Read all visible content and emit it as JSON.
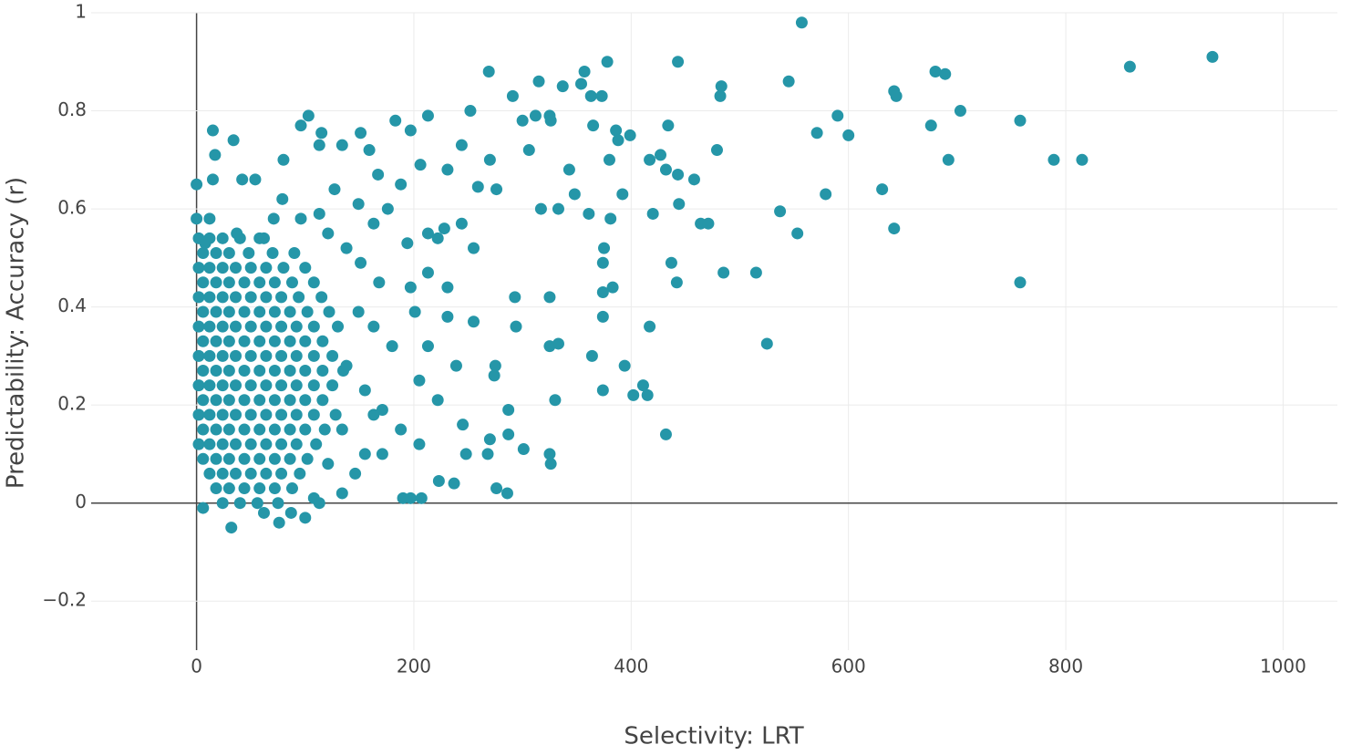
{
  "chart_data": {
    "type": "scatter",
    "x_label": "Selectivity: LRT",
    "y_label": "Predictability: Accuracy (r)",
    "color": "#2596a8",
    "grid": true,
    "zeroline": true,
    "xlim": [
      -97,
      1050
    ],
    "ylim": [
      -0.3,
      1
    ],
    "xticks": [
      0,
      200,
      400,
      600,
      800,
      1000
    ],
    "yticks": [
      {
        "value": -0.2,
        "label": "−0.2"
      },
      0,
      0.2,
      0.4,
      0.6,
      0.8,
      1
    ],
    "x": [
      2,
      12,
      24,
      40,
      58,
      6,
      18,
      30,
      48,
      70,
      90,
      2,
      12,
      24,
      36,
      50,
      64,
      80,
      100,
      6,
      18,
      30,
      44,
      58,
      72,
      88,
      108,
      2,
      12,
      24,
      36,
      50,
      64,
      78,
      94,
      115,
      6,
      18,
      30,
      44,
      58,
      72,
      86,
      102,
      122,
      2,
      12,
      24,
      36,
      50,
      64,
      78,
      92,
      108,
      130,
      6,
      18,
      30,
      44,
      58,
      72,
      86,
      100,
      116,
      2,
      12,
      24,
      36,
      50,
      64,
      78,
      92,
      108,
      125,
      6,
      18,
      30,
      44,
      58,
      72,
      86,
      100,
      116,
      135,
      2,
      12,
      24,
      36,
      50,
      64,
      78,
      92,
      108,
      125,
      6,
      18,
      30,
      44,
      58,
      72,
      86,
      100,
      116,
      2,
      12,
      24,
      36,
      50,
      64,
      78,
      92,
      108,
      128,
      6,
      18,
      30,
      44,
      58,
      72,
      86,
      100,
      118,
      2,
      12,
      24,
      36,
      50,
      64,
      78,
      92,
      110,
      6,
      18,
      30,
      44,
      58,
      72,
      86,
      102,
      12,
      24,
      36,
      50,
      64,
      78,
      95,
      18,
      30,
      44,
      58,
      72,
      88,
      24,
      40,
      56,
      75,
      557,
      935,
      859,
      443,
      378,
      269,
      680,
      689,
      357,
      545,
      483,
      315,
      337,
      354,
      642,
      644,
      482,
      363,
      373,
      291,
      590,
      703,
      758,
      103,
      312,
      325,
      326,
      300,
      183,
      213,
      252,
      434,
      365,
      386,
      676,
      571,
      600,
      15,
      115,
      151,
      197,
      399,
      388,
      34,
      96,
      113,
      134,
      159,
      244,
      306,
      427,
      479,
      17,
      692,
      789,
      815,
      417,
      380,
      270,
      206,
      231,
      80,
      167,
      432,
      443,
      458,
      343,
      15,
      0,
      42,
      54,
      188,
      259,
      276,
      579,
      631,
      392,
      348,
      127,
      79,
      444,
      317,
      333,
      537,
      420,
      361,
      381,
      464,
      471,
      553,
      642,
      375,
      374,
      437,
      485,
      515,
      442,
      758,
      383,
      374,
      325,
      293,
      374,
      417,
      294,
      525,
      333,
      325,
      364,
      394,
      275,
      274,
      411,
      402,
      415,
      374,
      330,
      287,
      432,
      287,
      270,
      245,
      301,
      248,
      325,
      326,
      268,
      237,
      276,
      286,
      190,
      207,
      197,
      223,
      213,
      228,
      222,
      244,
      255,
      213,
      197,
      231,
      201,
      231,
      255,
      213,
      180,
      239,
      205,
      222,
      171,
      188,
      205,
      155,
      171,
      146,
      163,
      176,
      194,
      151,
      168,
      149,
      163,
      138,
      155,
      134,
      121,
      134,
      108,
      100,
      76,
      32,
      6,
      62,
      87,
      113,
      71,
      96,
      113,
      138,
      121,
      62,
      37,
      12,
      0,
      8,
      149,
      163
    ],
    "y": [
      0.54,
      0.54,
      0.54,
      0.54,
      0.54,
      0.51,
      0.51,
      0.51,
      0.51,
      0.51,
      0.51,
      0.48,
      0.48,
      0.48,
      0.48,
      0.48,
      0.48,
      0.48,
      0.48,
      0.45,
      0.45,
      0.45,
      0.45,
      0.45,
      0.45,
      0.45,
      0.45,
      0.42,
      0.42,
      0.42,
      0.42,
      0.42,
      0.42,
      0.42,
      0.42,
      0.42,
      0.39,
      0.39,
      0.39,
      0.39,
      0.39,
      0.39,
      0.39,
      0.39,
      0.39,
      0.36,
      0.36,
      0.36,
      0.36,
      0.36,
      0.36,
      0.36,
      0.36,
      0.36,
      0.36,
      0.33,
      0.33,
      0.33,
      0.33,
      0.33,
      0.33,
      0.33,
      0.33,
      0.33,
      0.3,
      0.3,
      0.3,
      0.3,
      0.3,
      0.3,
      0.3,
      0.3,
      0.3,
      0.3,
      0.27,
      0.27,
      0.27,
      0.27,
      0.27,
      0.27,
      0.27,
      0.27,
      0.27,
      0.27,
      0.24,
      0.24,
      0.24,
      0.24,
      0.24,
      0.24,
      0.24,
      0.24,
      0.24,
      0.24,
      0.21,
      0.21,
      0.21,
      0.21,
      0.21,
      0.21,
      0.21,
      0.21,
      0.21,
      0.18,
      0.18,
      0.18,
      0.18,
      0.18,
      0.18,
      0.18,
      0.18,
      0.18,
      0.18,
      0.15,
      0.15,
      0.15,
      0.15,
      0.15,
      0.15,
      0.15,
      0.15,
      0.15,
      0.12,
      0.12,
      0.12,
      0.12,
      0.12,
      0.12,
      0.12,
      0.12,
      0.12,
      0.09,
      0.09,
      0.09,
      0.09,
      0.09,
      0.09,
      0.09,
      0.09,
      0.06,
      0.06,
      0.06,
      0.06,
      0.06,
      0.06,
      0.06,
      0.03,
      0.03,
      0.03,
      0.03,
      0.03,
      0.03,
      0,
      0,
      0,
      0,
      0.98,
      0.91,
      0.89,
      0.9,
      0.9,
      0.88,
      0.88,
      0.875,
      0.88,
      0.86,
      0.85,
      0.86,
      0.85,
      0.855,
      0.84,
      0.83,
      0.83,
      0.83,
      0.83,
      0.83,
      0.79,
      0.8,
      0.78,
      0.79,
      0.79,
      0.79,
      0.78,
      0.78,
      0.78,
      0.79,
      0.8,
      0.77,
      0.77,
      0.76,
      0.77,
      0.755,
      0.75,
      0.76,
      0.755,
      0.755,
      0.76,
      0.75,
      0.74,
      0.74,
      0.77,
      0.73,
      0.73,
      0.72,
      0.73,
      0.72,
      0.71,
      0.72,
      0.71,
      0.7,
      0.7,
      0.7,
      0.7,
      0.7,
      0.7,
      0.69,
      0.68,
      0.7,
      0.67,
      0.68,
      0.67,
      0.66,
      0.68,
      0.66,
      0.65,
      0.66,
      0.66,
      0.65,
      0.645,
      0.64,
      0.63,
      0.64,
      0.63,
      0.63,
      0.64,
      0.62,
      0.61,
      0.6,
      0.6,
      0.595,
      0.59,
      0.59,
      0.58,
      0.57,
      0.57,
      0.55,
      0.56,
      0.52,
      0.49,
      0.49,
      0.47,
      0.47,
      0.45,
      0.45,
      0.44,
      0.43,
      0.42,
      0.42,
      0.38,
      0.36,
      0.36,
      0.325,
      0.325,
      0.32,
      0.3,
      0.28,
      0.28,
      0.26,
      0.24,
      0.22,
      0.22,
      0.23,
      0.21,
      0.19,
      0.14,
      0.14,
      0.13,
      0.16,
      0.11,
      0.1,
      0.1,
      0.08,
      0.1,
      0.04,
      0.03,
      0.02,
      0.01,
      0.01,
      0.01,
      0.045,
      0.55,
      0.56,
      0.54,
      0.57,
      0.52,
      0.47,
      0.44,
      0.44,
      0.39,
      0.38,
      0.37,
      0.32,
      0.32,
      0.28,
      0.25,
      0.21,
      0.19,
      0.15,
      0.12,
      0.1,
      0.1,
      0.06,
      0.18,
      0.6,
      0.53,
      0.49,
      0.45,
      0.39,
      0.36,
      0.28,
      0.23,
      0.15,
      0.08,
      0.02,
      0.01,
      -0.03,
      -0.04,
      -0.05,
      -0.01,
      -0.02,
      -0.02,
      0,
      0.58,
      0.58,
      0.59,
      0.52,
      0.55,
      0.54,
      0.55,
      0.58,
      0.58,
      0.53,
      0.61,
      0.57
    ]
  }
}
